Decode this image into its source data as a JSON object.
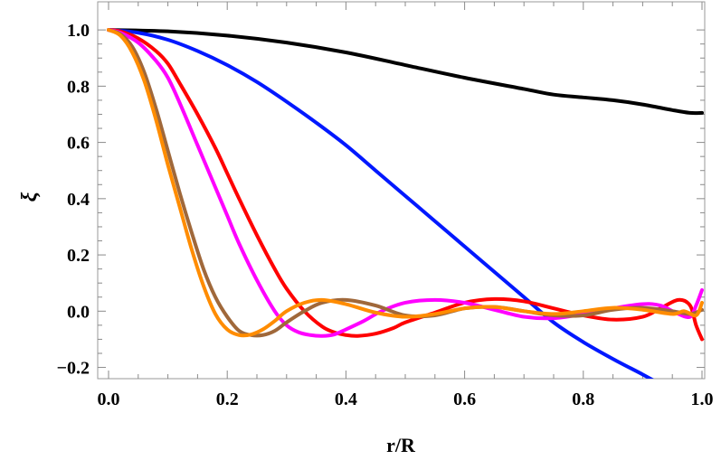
{
  "chart_data": {
    "type": "line",
    "title": "",
    "xlabel": "r/R",
    "ylabel": "ξ",
    "xlim": [
      0.0,
      1.0
    ],
    "ylim": [
      -0.24,
      1.1
    ],
    "grid": false,
    "x_ticks": [
      {
        "value": 0.0,
        "label": "0.0"
      },
      {
        "value": 0.2,
        "label": "0.2"
      },
      {
        "value": 0.4,
        "label": "0.4"
      },
      {
        "value": 0.6,
        "label": "0.6"
      },
      {
        "value": 0.8,
        "label": "0.8"
      },
      {
        "value": 1.0,
        "label": "1.0"
      }
    ],
    "y_ticks": [
      {
        "value": -0.2,
        "label": "−0.2"
      },
      {
        "value": 0.0,
        "label": "0.0"
      },
      {
        "value": 0.2,
        "label": "0.2"
      },
      {
        "value": 0.4,
        "label": "0.4"
      },
      {
        "value": 0.6,
        "label": "0.6"
      },
      {
        "value": 0.8,
        "label": "0.8"
      },
      {
        "value": 1.0,
        "label": "1.0"
      }
    ],
    "series": [
      {
        "name": "black",
        "color": "#000000",
        "x": [
          0.0,
          0.1,
          0.2,
          0.3,
          0.4,
          0.5,
          0.6,
          0.7,
          0.75,
          0.8,
          0.85,
          0.9,
          0.95,
          0.98,
          1.0
        ],
        "y": [
          1.0,
          0.995,
          0.98,
          0.955,
          0.92,
          0.875,
          0.83,
          0.79,
          0.77,
          0.76,
          0.75,
          0.735,
          0.715,
          0.705,
          0.705
        ]
      },
      {
        "name": "blue",
        "color": "#0018ff",
        "x": [
          0.0,
          0.05,
          0.1,
          0.15,
          0.2,
          0.25,
          0.3,
          0.35,
          0.4,
          0.45,
          0.5,
          0.55,
          0.6,
          0.65,
          0.7,
          0.75,
          0.8,
          0.85,
          0.9,
          0.93
        ],
        "y": [
          1.0,
          0.99,
          0.965,
          0.925,
          0.875,
          0.815,
          0.745,
          0.67,
          0.59,
          0.5,
          0.41,
          0.32,
          0.23,
          0.14,
          0.05,
          -0.04,
          -0.11,
          -0.17,
          -0.225,
          -0.26
        ]
      },
      {
        "name": "red",
        "color": "#ff0000",
        "x": [
          0.0,
          0.02,
          0.05,
          0.08,
          0.1,
          0.12,
          0.15,
          0.18,
          0.2,
          0.22,
          0.25,
          0.28,
          0.3,
          0.33,
          0.36,
          0.38,
          0.4,
          0.42,
          0.45,
          0.48,
          0.5,
          0.55,
          0.6,
          0.65,
          0.7,
          0.75,
          0.8,
          0.85,
          0.9,
          0.93,
          0.96,
          0.98,
          0.99,
          1.0
        ],
        "y": [
          1.0,
          0.995,
          0.97,
          0.925,
          0.88,
          0.81,
          0.7,
          0.58,
          0.49,
          0.4,
          0.27,
          0.15,
          0.08,
          0.0,
          -0.055,
          -0.075,
          -0.085,
          -0.088,
          -0.08,
          -0.06,
          -0.04,
          -0.005,
          0.03,
          0.043,
          0.035,
          0.01,
          -0.015,
          -0.03,
          -0.02,
          0.01,
          0.04,
          0.02,
          -0.05,
          -0.1
        ]
      },
      {
        "name": "magenta",
        "color": "#ff00ff",
        "x": [
          0.0,
          0.02,
          0.05,
          0.08,
          0.1,
          0.12,
          0.15,
          0.18,
          0.2,
          0.22,
          0.25,
          0.28,
          0.3,
          0.32,
          0.34,
          0.36,
          0.38,
          0.4,
          0.43,
          0.46,
          0.5,
          0.55,
          0.6,
          0.65,
          0.7,
          0.75,
          0.8,
          0.85,
          0.9,
          0.93,
          0.96,
          0.98,
          0.99,
          1.0
        ],
        "y": [
          1.0,
          0.99,
          0.955,
          0.89,
          0.83,
          0.74,
          0.59,
          0.44,
          0.34,
          0.24,
          0.11,
          0.0,
          -0.05,
          -0.075,
          -0.085,
          -0.088,
          -0.083,
          -0.065,
          -0.035,
          0.0,
          0.03,
          0.04,
          0.03,
          0.005,
          -0.02,
          -0.025,
          -0.01,
          0.01,
          0.025,
          0.02,
          -0.01,
          -0.02,
          0.02,
          0.075
        ]
      },
      {
        "name": "brown",
        "color": "#a0683a",
        "x": [
          0.0,
          0.02,
          0.04,
          0.06,
          0.08,
          0.1,
          0.12,
          0.14,
          0.16,
          0.18,
          0.2,
          0.22,
          0.24,
          0.26,
          0.28,
          0.3,
          0.33,
          0.36,
          0.4,
          0.45,
          0.5,
          0.55,
          0.6,
          0.65,
          0.7,
          0.75,
          0.8,
          0.85,
          0.9,
          0.95,
          0.98,
          1.0
        ],
        "y": [
          1.0,
          0.985,
          0.94,
          0.85,
          0.72,
          0.57,
          0.42,
          0.28,
          0.15,
          0.05,
          -0.02,
          -0.07,
          -0.085,
          -0.085,
          -0.07,
          -0.04,
          0.0,
          0.03,
          0.04,
          0.02,
          -0.015,
          -0.015,
          0.01,
          0.015,
          0.0,
          -0.015,
          -0.015,
          0.005,
          0.012,
          0.0,
          -0.01,
          0.005
        ]
      },
      {
        "name": "orange",
        "color": "#ff8c00",
        "x": [
          0.0,
          0.02,
          0.04,
          0.06,
          0.08,
          0.1,
          0.12,
          0.14,
          0.16,
          0.18,
          0.2,
          0.22,
          0.24,
          0.26,
          0.28,
          0.3,
          0.33,
          0.36,
          0.4,
          0.45,
          0.5,
          0.55,
          0.6,
          0.65,
          0.7,
          0.75,
          0.8,
          0.85,
          0.9,
          0.95,
          0.97,
          0.99,
          1.0
        ],
        "y": [
          1.0,
          0.98,
          0.92,
          0.82,
          0.68,
          0.52,
          0.37,
          0.22,
          0.09,
          -0.01,
          -0.065,
          -0.085,
          -0.083,
          -0.065,
          -0.035,
          0.0,
          0.03,
          0.04,
          0.025,
          -0.005,
          -0.02,
          -0.01,
          0.01,
          0.015,
          0.0,
          -0.01,
          0.0,
          0.012,
          0.005,
          -0.01,
          0.0,
          -0.015,
          0.03
        ]
      }
    ]
  }
}
